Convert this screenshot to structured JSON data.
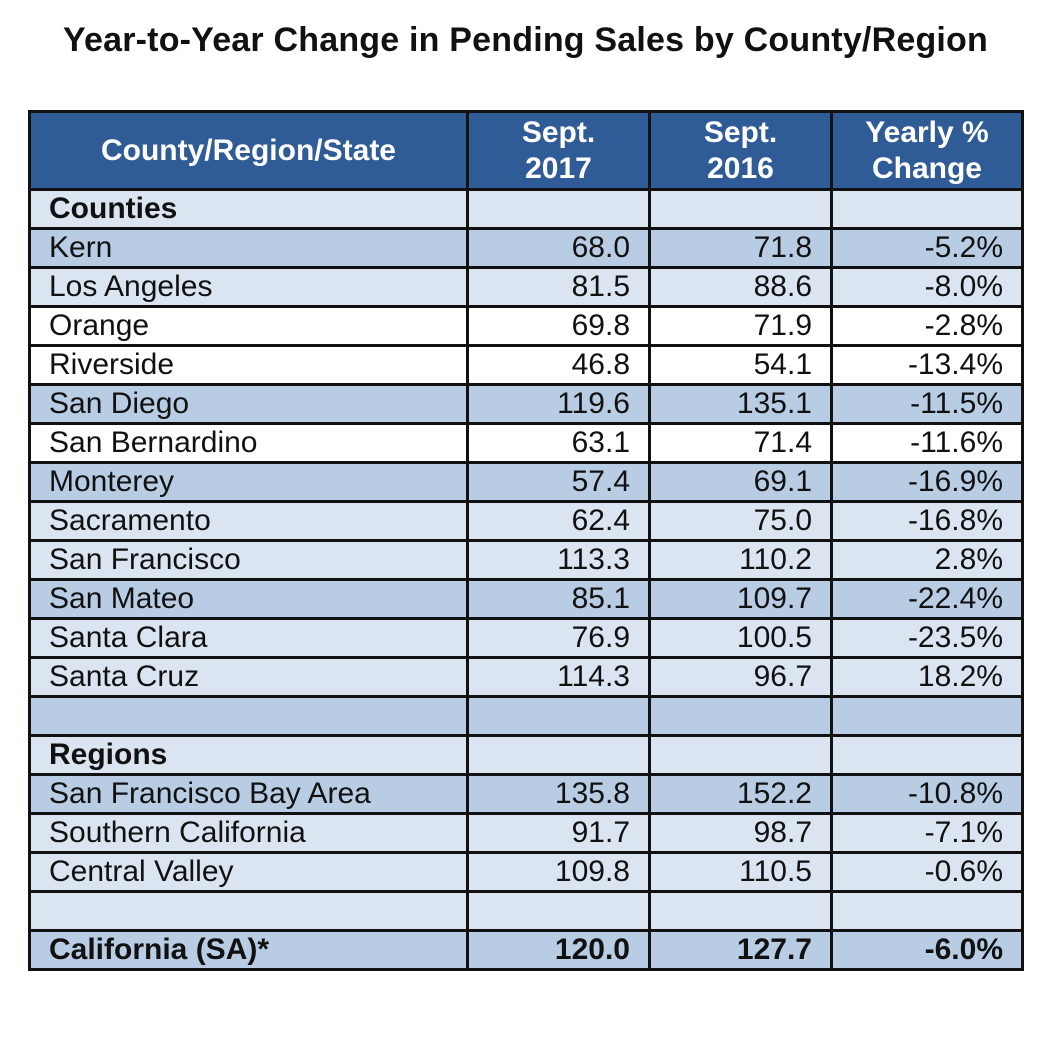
{
  "title": "Year-to-Year Change in Pending Sales by County/Region",
  "header": {
    "col1": "County/Region/State",
    "col2_line1": "Sept.",
    "col2_line2": "2017",
    "col3_line1": "Sept.",
    "col3_line2": "2016",
    "col4_line1": "Yearly %",
    "col4_line2": "Change"
  },
  "rows": [
    {
      "name": "Counties",
      "sept2017": "",
      "sept2016": "",
      "change": "",
      "shade": "light",
      "bold": true
    },
    {
      "name": "Kern",
      "sept2017": "68.0",
      "sept2016": "71.8",
      "change": "-5.2%",
      "shade": "dark",
      "bold": false
    },
    {
      "name": "Los Angeles",
      "sept2017": "81.5",
      "sept2016": "88.6",
      "change": "-8.0%",
      "shade": "light",
      "bold": false
    },
    {
      "name": "Orange",
      "sept2017": "69.8",
      "sept2016": "71.9",
      "change": "-2.8%",
      "shade": "white",
      "bold": false
    },
    {
      "name": "Riverside",
      "sept2017": "46.8",
      "sept2016": "54.1",
      "change": "-13.4%",
      "shade": "white",
      "bold": false
    },
    {
      "name": "San Diego",
      "sept2017": "119.6",
      "sept2016": "135.1",
      "change": "-11.5%",
      "shade": "dark",
      "bold": false
    },
    {
      "name": "San Bernardino",
      "sept2017": "63.1",
      "sept2016": "71.4",
      "change": "-11.6%",
      "shade": "white",
      "bold": false
    },
    {
      "name": "Monterey",
      "sept2017": "57.4",
      "sept2016": "69.1",
      "change": "-16.9%",
      "shade": "dark",
      "bold": false
    },
    {
      "name": "Sacramento",
      "sept2017": "62.4",
      "sept2016": "75.0",
      "change": "-16.8%",
      "shade": "light",
      "bold": false
    },
    {
      "name": "San Francisco",
      "sept2017": "113.3",
      "sept2016": "110.2",
      "change": "2.8%",
      "shade": "light",
      "bold": false
    },
    {
      "name": "San Mateo",
      "sept2017": "85.1",
      "sept2016": "109.7",
      "change": "-22.4%",
      "shade": "dark",
      "bold": false
    },
    {
      "name": "Santa Clara",
      "sept2017": "76.9",
      "sept2016": "100.5",
      "change": "-23.5%",
      "shade": "light",
      "bold": false
    },
    {
      "name": "Santa Cruz",
      "sept2017": "114.3",
      "sept2016": "96.7",
      "change": "18.2%",
      "shade": "light",
      "bold": false
    },
    {
      "name": "",
      "sept2017": "",
      "sept2016": "",
      "change": "",
      "shade": "dark",
      "bold": false
    },
    {
      "name": "Regions",
      "sept2017": "",
      "sept2016": "",
      "change": "",
      "shade": "light",
      "bold": true
    },
    {
      "name": "San Francisco Bay Area",
      "sept2017": "135.8",
      "sept2016": "152.2",
      "change": "-10.8%",
      "shade": "dark",
      "bold": false
    },
    {
      "name": "Southern California",
      "sept2017": "91.7",
      "sept2016": "98.7",
      "change": "-7.1%",
      "shade": "light",
      "bold": false
    },
    {
      "name": "Central Valley",
      "sept2017": "109.8",
      "sept2016": "110.5",
      "change": "-0.6%",
      "shade": "light",
      "bold": false
    },
    {
      "name": "",
      "sept2017": "",
      "sept2016": "",
      "change": "",
      "shade": "light",
      "bold": false
    },
    {
      "name": "California (SA)*",
      "sept2017": "120.0",
      "sept2016": "127.7",
      "change": "-6.0%",
      "shade": "dark",
      "bold": true
    }
  ]
}
